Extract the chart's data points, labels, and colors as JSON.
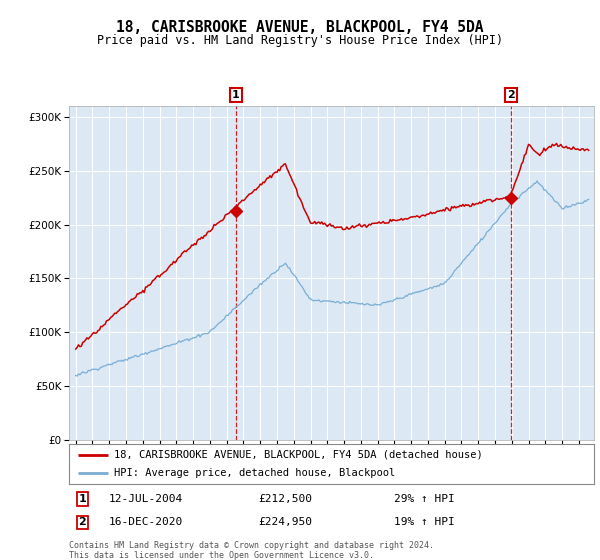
{
  "title": "18, CARISBROOKE AVENUE, BLACKPOOL, FY4 5DA",
  "subtitle": "Price paid vs. HM Land Registry's House Price Index (HPI)",
  "legend_line1": "18, CARISBROOKE AVENUE, BLACKPOOL, FY4 5DA (detached house)",
  "legend_line2": "HPI: Average price, detached house, Blackpool",
  "annotation1_date": "12-JUL-2004",
  "annotation1_price": "£212,500",
  "annotation1_hpi": "29% ↑ HPI",
  "annotation2_date": "16-DEC-2020",
  "annotation2_price": "£224,950",
  "annotation2_hpi": "19% ↑ HPI",
  "footer": "Contains HM Land Registry data © Crown copyright and database right 2024.\nThis data is licensed under the Open Government Licence v3.0.",
  "hpi_color": "#7aadd4",
  "price_color": "#cc0000",
  "ylim": [
    0,
    310000
  ],
  "yticks": [
    0,
    50000,
    100000,
    150000,
    200000,
    250000,
    300000
  ],
  "background_color": "#ffffff",
  "plot_bg_color": "#dce9f5"
}
